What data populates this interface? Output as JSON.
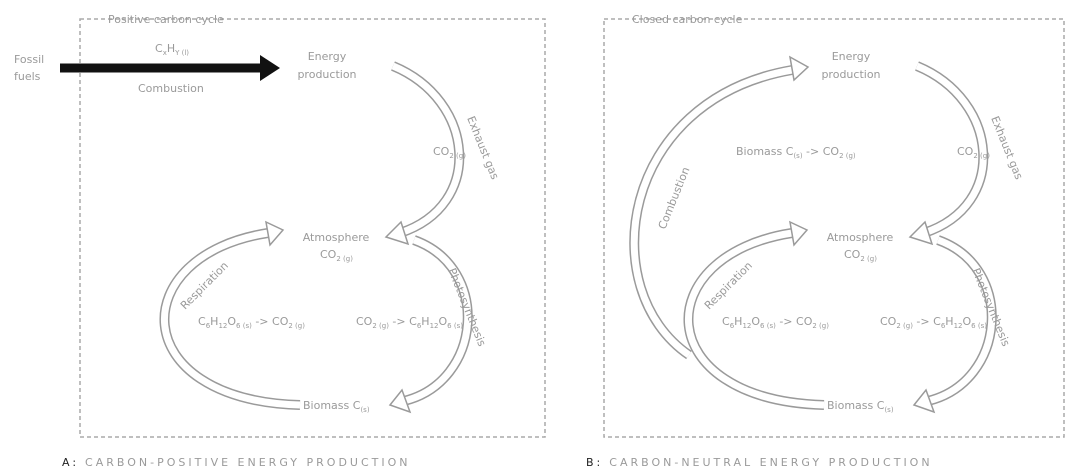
{
  "panels": [
    {
      "cycle_label": "Positive carbon cycle",
      "caption": {
        "letter": "A:",
        "title": "CARBON-POSITIVE ENERGY PRODUCTION"
      },
      "fossil_fuels": [
        "Fossil",
        "fuels"
      ],
      "fuel_formula": [
        "C",
        "x",
        "H",
        "Y (l)"
      ],
      "combustion": "Combustion",
      "energy": [
        "Energy",
        "production"
      ],
      "exhaust": "Exhaust gas",
      "exhaust_formula": [
        "CO",
        "2 (g)"
      ],
      "atmosphere": "Atmosphere",
      "atmosphere_formula": [
        "CO",
        "2 (g)"
      ],
      "photosynthesis": "Photosynthesis",
      "photosynthesis_formula": [
        "CO",
        "2 (g)",
        " -> C",
        "6",
        "H",
        "12",
        "O",
        "6 (s)"
      ],
      "respiration": "Respiration",
      "respiration_formula": [
        "C",
        "6",
        "H",
        "12",
        "O",
        "6 (s)",
        " -> CO",
        "2 (g)"
      ],
      "biomass": [
        "Biomass C",
        "(s)"
      ]
    },
    {
      "cycle_label": "Closed carbon cycle",
      "caption": {
        "letter": "B:",
        "title": "CARBON-NEUTRAL ENERGY PRODUCTION"
      },
      "combustion": "Combustion",
      "combustion_formula": [
        "Biomass C",
        "(s)",
        " -> CO",
        "2 (g)"
      ],
      "energy": [
        "Energy",
        "production"
      ],
      "exhaust": "Exhaust gas",
      "exhaust_formula": [
        "CO",
        "2 (g)"
      ],
      "atmosphere": "Atmosphere",
      "atmosphere_formula": [
        "CO",
        "2 (g)"
      ],
      "photosynthesis": "Photosynthesis",
      "photosynthesis_formula": [
        "CO",
        "2 (g)",
        " -> C",
        "6",
        "H",
        "12",
        "O",
        "6 (s)"
      ],
      "respiration": "Respiration",
      "respiration_formula": [
        "C",
        "6",
        "H",
        "12",
        "O",
        "6 (s)",
        " -> CO",
        "2 (g)"
      ],
      "biomass": [
        "Biomass C",
        "(s)"
      ]
    }
  ]
}
